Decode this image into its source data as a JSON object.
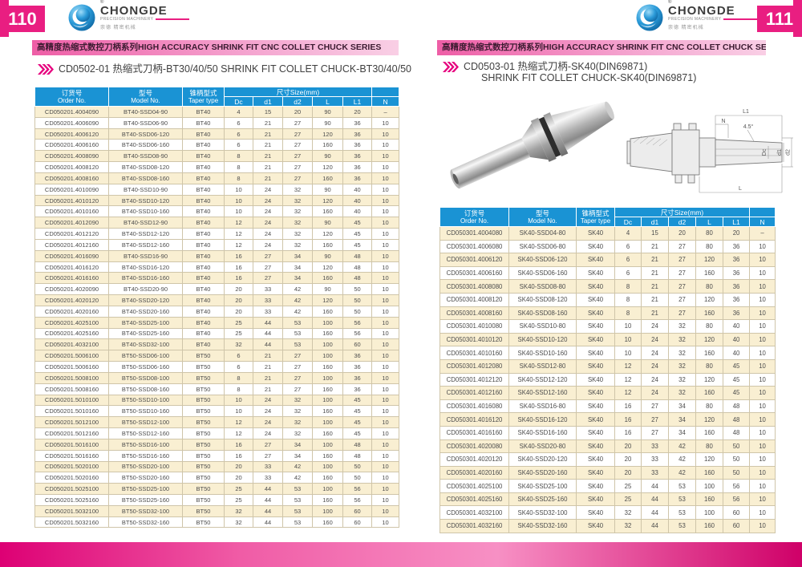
{
  "logo": {
    "registered": "®",
    "brand": "CHONGDE",
    "subtitle": "PRECISION MACHINERY",
    "chinese": "崇德 精密机械"
  },
  "banner_text": "高精度热缩式数控刀柄系列HIGH ACCURACY SHRINK FIT CNC COLLET CHUCK SERIES",
  "columns": {
    "order_cn": "订货号",
    "order_en": "Order No.",
    "model_cn": "型号",
    "model_en": "Model No.",
    "taper_cn": "锥柄型式",
    "taper_en": "Taper type",
    "size_group": "尺寸Size(mm)",
    "size_cols": [
      "Dc",
      "d1",
      "d2",
      "L",
      "L1",
      "N"
    ]
  },
  "colors": {
    "accent_pink": "#e91e81",
    "header_blue": "#1a93d4",
    "row_cream": "#f9efd2",
    "bottom_bar_magenta": "#dd0074"
  },
  "pages": [
    {
      "page_number": "110",
      "title_lines": [
        "CD0502-01 热缩式刀柄-BT30/40/50 SHRINK FIT COLLET CHUCK-BT30/40/50"
      ],
      "table_rows": [
        [
          "CD050201.4004090",
          "BT40-SSD04-90",
          "BT40",
          "4",
          "15",
          "20",
          "90",
          "20",
          "–"
        ],
        [
          "CD050201.4006090",
          "BT40-SSD06-90",
          "BT40",
          "6",
          "21",
          "27",
          "90",
          "36",
          "10"
        ],
        [
          "CD050201.4006120",
          "BT40-SSD06-120",
          "BT40",
          "6",
          "21",
          "27",
          "120",
          "36",
          "10"
        ],
        [
          "CD050201.4006160",
          "BT40-SSD06-160",
          "BT40",
          "6",
          "21",
          "27",
          "160",
          "36",
          "10"
        ],
        [
          "CD050201.4008090",
          "BT40-SSD08-90",
          "BT40",
          "8",
          "21",
          "27",
          "90",
          "36",
          "10"
        ],
        [
          "CD050201.4008120",
          "BT40-SSD08-120",
          "BT40",
          "8",
          "21",
          "27",
          "120",
          "36",
          "10"
        ],
        [
          "CD050201.4008160",
          "BT40-SSD08-160",
          "BT40",
          "8",
          "21",
          "27",
          "160",
          "36",
          "10"
        ],
        [
          "CD050201.4010090",
          "BT40-SSD10-90",
          "BT40",
          "10",
          "24",
          "32",
          "90",
          "40",
          "10"
        ],
        [
          "CD050201.4010120",
          "BT40-SSD10-120",
          "BT40",
          "10",
          "24",
          "32",
          "120",
          "40",
          "10"
        ],
        [
          "CD050201.4010160",
          "BT40-SSD10-160",
          "BT40",
          "10",
          "24",
          "32",
          "160",
          "40",
          "10"
        ],
        [
          "CD050201.4012090",
          "BT40-SSD12-90",
          "BT40",
          "12",
          "24",
          "32",
          "90",
          "45",
          "10"
        ],
        [
          "CD050201.4012120",
          "BT40-SSD12-120",
          "BT40",
          "12",
          "24",
          "32",
          "120",
          "45",
          "10"
        ],
        [
          "CD050201.4012160",
          "BT40-SSD12-160",
          "BT40",
          "12",
          "24",
          "32",
          "160",
          "45",
          "10"
        ],
        [
          "CD050201.4016090",
          "BT40-SSD16-90",
          "BT40",
          "16",
          "27",
          "34",
          "90",
          "48",
          "10"
        ],
        [
          "CD050201.4016120",
          "BT40-SSD16-120",
          "BT40",
          "16",
          "27",
          "34",
          "120",
          "48",
          "10"
        ],
        [
          "CD050201.4016160",
          "BT40-SSD16-160",
          "BT40",
          "16",
          "27",
          "34",
          "160",
          "48",
          "10"
        ],
        [
          "CD050201.4020090",
          "BT40-SSD20-90",
          "BT40",
          "20",
          "33",
          "42",
          "90",
          "50",
          "10"
        ],
        [
          "CD050201.4020120",
          "BT40-SSD20-120",
          "BT40",
          "20",
          "33",
          "42",
          "120",
          "50",
          "10"
        ],
        [
          "CD050201.4020160",
          "BT40-SSD20-160",
          "BT40",
          "20",
          "33",
          "42",
          "160",
          "50",
          "10"
        ],
        [
          "CD050201.4025100",
          "BT40-SSD25-100",
          "BT40",
          "25",
          "44",
          "53",
          "100",
          "56",
          "10"
        ],
        [
          "CD050201.4025160",
          "BT40-SSD25-160",
          "BT40",
          "25",
          "44",
          "53",
          "160",
          "56",
          "10"
        ],
        [
          "CD050201.4032100",
          "BT40-SSD32-100",
          "BT40",
          "32",
          "44",
          "53",
          "100",
          "60",
          "10"
        ],
        [
          "CD050201.5006100",
          "BT50-SSD06-100",
          "BT50",
          "6",
          "21",
          "27",
          "100",
          "36",
          "10"
        ],
        [
          "CD050201.5006160",
          "BT50-SSD06-160",
          "BT50",
          "6",
          "21",
          "27",
          "160",
          "36",
          "10"
        ],
        [
          "CD050201.5008100",
          "BT50-SSD08-100",
          "BT50",
          "8",
          "21",
          "27",
          "100",
          "36",
          "10"
        ],
        [
          "CD050201.5008160",
          "BT50-SSD08-160",
          "BT50",
          "8",
          "21",
          "27",
          "160",
          "36",
          "10"
        ],
        [
          "CD050201.5010100",
          "BT50-SSD10-100",
          "BT50",
          "10",
          "24",
          "32",
          "100",
          "45",
          "10"
        ],
        [
          "CD050201.5010160",
          "BT50-SSD10-160",
          "BT50",
          "10",
          "24",
          "32",
          "160",
          "45",
          "10"
        ],
        [
          "CD050201.5012100",
          "BT50-SSD12-100",
          "BT50",
          "12",
          "24",
          "32",
          "100",
          "45",
          "10"
        ],
        [
          "CD050201.5012160",
          "BT50-SSD12-160",
          "BT50",
          "12",
          "24",
          "32",
          "160",
          "45",
          "10"
        ],
        [
          "CD050201.5016100",
          "BT50-SSD16-100",
          "BT50",
          "16",
          "27",
          "34",
          "100",
          "48",
          "10"
        ],
        [
          "CD050201.5016160",
          "BT50-SSD16-160",
          "BT50",
          "16",
          "27",
          "34",
          "160",
          "48",
          "10"
        ],
        [
          "CD050201.5020100",
          "BT50-SSD20-100",
          "BT50",
          "20",
          "33",
          "42",
          "100",
          "50",
          "10"
        ],
        [
          "CD050201.5020160",
          "BT50-SSD20-160",
          "BT50",
          "20",
          "33",
          "42",
          "160",
          "50",
          "10"
        ],
        [
          "CD050201.5025100",
          "BT50-SSD25-100",
          "BT50",
          "25",
          "44",
          "53",
          "100",
          "56",
          "10"
        ],
        [
          "CD050201.5025160",
          "BT50-SSD25-160",
          "BT50",
          "25",
          "44",
          "53",
          "160",
          "56",
          "10"
        ],
        [
          "CD050201.5032100",
          "BT50-SSD32-100",
          "BT50",
          "32",
          "44",
          "53",
          "100",
          "60",
          "10"
        ],
        [
          "CD050201.5032160",
          "BT50-SSD32-160",
          "BT50",
          "32",
          "44",
          "53",
          "160",
          "60",
          "10"
        ]
      ]
    },
    {
      "page_number": "111",
      "title_lines": [
        "CD0503-01 热缩式刀柄-SK40(DIN69871)",
        "SHRINK FIT COLLET CHUCK-SK40(DIN69871)"
      ],
      "drawing_labels": {
        "l1": "L1",
        "n": "N",
        "angle": "4.5°",
        "dc": "Dc",
        "d1": "d1",
        "d2": "d2",
        "l": "L"
      },
      "table_rows": [
        [
          "CD050301.4004080",
          "SK40-SSD04-80",
          "SK40",
          "4",
          "15",
          "20",
          "80",
          "20",
          "–"
        ],
        [
          "CD050301.4006080",
          "SK40-SSD06-80",
          "SK40",
          "6",
          "21",
          "27",
          "80",
          "36",
          "10"
        ],
        [
          "CD050301.4006120",
          "SK40-SSD06-120",
          "SK40",
          "6",
          "21",
          "27",
          "120",
          "36",
          "10"
        ],
        [
          "CD050301.4006160",
          "SK40-SSD06-160",
          "SK40",
          "6",
          "21",
          "27",
          "160",
          "36",
          "10"
        ],
        [
          "CD050301.4008080",
          "SK40-SSD08-80",
          "SK40",
          "8",
          "21",
          "27",
          "80",
          "36",
          "10"
        ],
        [
          "CD050301.4008120",
          "SK40-SSD08-120",
          "SK40",
          "8",
          "21",
          "27",
          "120",
          "36",
          "10"
        ],
        [
          "CD050301.4008160",
          "SK40-SSD08-160",
          "SK40",
          "8",
          "21",
          "27",
          "160",
          "36",
          "10"
        ],
        [
          "CD050301.4010080",
          "SK40-SSD10-80",
          "SK40",
          "10",
          "24",
          "32",
          "80",
          "40",
          "10"
        ],
        [
          "CD050301.4010120",
          "SK40-SSD10-120",
          "SK40",
          "10",
          "24",
          "32",
          "120",
          "40",
          "10"
        ],
        [
          "CD050301.4010160",
          "SK40-SSD10-160",
          "SK40",
          "10",
          "24",
          "32",
          "160",
          "40",
          "10"
        ],
        [
          "CD050301.4012080",
          "SK40-SSD12-80",
          "SK40",
          "12",
          "24",
          "32",
          "80",
          "45",
          "10"
        ],
        [
          "CD050301.4012120",
          "SK40-SSD12-120",
          "SK40",
          "12",
          "24",
          "32",
          "120",
          "45",
          "10"
        ],
        [
          "CD050301.4012160",
          "SK40-SSD12-160",
          "SK40",
          "12",
          "24",
          "32",
          "160",
          "45",
          "10"
        ],
        [
          "CD050301.4016080",
          "SK40-SSD16-80",
          "SK40",
          "16",
          "27",
          "34",
          "80",
          "48",
          "10"
        ],
        [
          "CD050301.4016120",
          "SK40-SSD16-120",
          "SK40",
          "16",
          "27",
          "34",
          "120",
          "48",
          "10"
        ],
        [
          "CD050301.4016160",
          "SK40-SSD16-160",
          "SK40",
          "16",
          "27",
          "34",
          "160",
          "48",
          "10"
        ],
        [
          "CD050301.4020080",
          "SK40-SSD20-80",
          "SK40",
          "20",
          "33",
          "42",
          "80",
          "50",
          "10"
        ],
        [
          "CD050301.4020120",
          "SK40-SSD20-120",
          "SK40",
          "20",
          "33",
          "42",
          "120",
          "50",
          "10"
        ],
        [
          "CD050301.4020160",
          "SK40-SSD20-160",
          "SK40",
          "20",
          "33",
          "42",
          "160",
          "50",
          "10"
        ],
        [
          "CD050301.4025100",
          "SK40-SSD25-100",
          "SK40",
          "25",
          "44",
          "53",
          "100",
          "56",
          "10"
        ],
        [
          "CD050301.4025160",
          "SK40-SSD25-160",
          "SK40",
          "25",
          "44",
          "53",
          "160",
          "56",
          "10"
        ],
        [
          "CD050301.4032100",
          "SK40-SSD32-100",
          "SK40",
          "32",
          "44",
          "53",
          "100",
          "60",
          "10"
        ],
        [
          "CD050301.4032160",
          "SK40-SSD32-160",
          "SK40",
          "32",
          "44",
          "53",
          "160",
          "60",
          "10"
        ]
      ]
    }
  ]
}
